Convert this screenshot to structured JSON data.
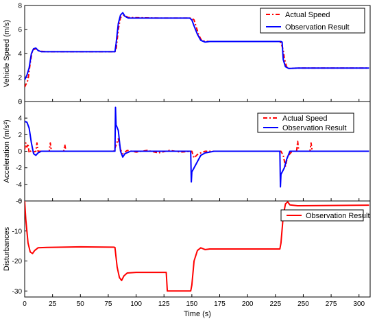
{
  "chart_data": {
    "type": "line",
    "xlabel": "Time (s)",
    "xlim": [
      0,
      310
    ],
    "xticks": [
      0,
      25,
      50,
      75,
      100,
      125,
      150,
      175,
      200,
      225,
      250,
      275,
      300
    ],
    "panels": [
      {
        "ylabel": "Vehicle Speed (m/s)",
        "ylim": [
          0,
          8
        ],
        "yticks": [
          0,
          2,
          4,
          6,
          8
        ],
        "legend_position": "top-right",
        "series": [
          {
            "name": "Actual Speed",
            "color": "#ff0000",
            "style": "dashdot",
            "points": [
              [
                0,
                1.2
              ],
              [
                3,
                1.8
              ],
              [
                5,
                3.2
              ],
              [
                7,
                4.3
              ],
              [
                10,
                4.4
              ],
              [
                13,
                4.2
              ],
              [
                20,
                4.15
              ],
              [
                50,
                4.15
              ],
              [
                81,
                4.15
              ],
              [
                82,
                4.3
              ],
              [
                84,
                6.0
              ],
              [
                86,
                7.0
              ],
              [
                89,
                7.2
              ],
              [
                93,
                7.0
              ],
              [
                120,
                6.95
              ],
              [
                150,
                6.95
              ],
              [
                152,
                6.8
              ],
              [
                156,
                5.6
              ],
              [
                158,
                5.2
              ],
              [
                160,
                5.05
              ],
              [
                165,
                5.0
              ],
              [
                200,
                5.0
              ],
              [
                228,
                5.0
              ],
              [
                230,
                4.9
              ],
              [
                232,
                4.3
              ],
              [
                233,
                3.6
              ],
              [
                235,
                2.9
              ],
              [
                237,
                2.75
              ],
              [
                245,
                2.78
              ],
              [
                309,
                2.78
              ]
            ]
          },
          {
            "name": "Observation Result",
            "color": "#0000ff",
            "style": "solid",
            "points": [
              [
                0,
                1.8
              ],
              [
                2,
                2.2
              ],
              [
                4,
                2.8
              ],
              [
                6,
                4.0
              ],
              [
                8,
                4.4
              ],
              [
                10,
                4.45
              ],
              [
                12,
                4.25
              ],
              [
                15,
                4.15
              ],
              [
                50,
                4.15
              ],
              [
                81,
                4.15
              ],
              [
                82,
                4.8
              ],
              [
                84,
                6.5
              ],
              [
                86,
                7.2
              ],
              [
                88,
                7.4
              ],
              [
                90,
                7.1
              ],
              [
                93,
                6.95
              ],
              [
                120,
                6.95
              ],
              [
                148,
                6.95
              ],
              [
                150,
                6.8
              ],
              [
                152,
                6.3
              ],
              [
                155,
                5.6
              ],
              [
                158,
                5.1
              ],
              [
                162,
                4.95
              ],
              [
                166,
                5.0
              ],
              [
                200,
                5.0
              ],
              [
                230,
                5.0
              ],
              [
                231,
                4.95
              ],
              [
                232,
                3.5
              ],
              [
                234,
                2.9
              ],
              [
                237,
                2.75
              ],
              [
                245,
                2.78
              ],
              [
                309,
                2.78
              ]
            ]
          }
        ]
      },
      {
        "ylabel": "Acceleration (m/s²)",
        "ylim": [
          -6,
          6
        ],
        "yticks": [
          -6,
          -4,
          -2,
          0,
          2,
          4,
          6
        ],
        "legend_position": "top-right",
        "series": [
          {
            "name": "Actual Speed",
            "color": "#ff0000",
            "style": "dashdot",
            "points": [
              [
                0,
                0.2
              ],
              [
                1,
                1.0
              ],
              [
                2,
                0.5
              ],
              [
                3,
                0.9
              ],
              [
                4,
                -0.2
              ],
              [
                6,
                0.1
              ],
              [
                8,
                -0.1
              ],
              [
                10,
                0.0
              ],
              [
                11,
                1.0
              ],
              [
                12,
                0.0
              ],
              [
                22,
                0.0
              ],
              [
                23,
                1.0
              ],
              [
                24,
                0.0
              ],
              [
                35,
                0.0
              ],
              [
                36,
                0.8
              ],
              [
                37,
                0.0
              ],
              [
                80,
                0.0
              ],
              [
                84,
                1.5
              ],
              [
                86,
                0.2
              ],
              [
                88,
                -0.3
              ],
              [
                92,
                0.1
              ],
              [
                100,
                -0.1
              ],
              [
                110,
                0.1
              ],
              [
                120,
                -0.2
              ],
              [
                130,
                0.1
              ],
              [
                140,
                -0.1
              ],
              [
                150,
                0.0
              ],
              [
                152,
                -0.8
              ],
              [
                155,
                -0.4
              ],
              [
                158,
                -0.2
              ],
              [
                162,
                0.0
              ],
              [
                200,
                0.0
              ],
              [
                230,
                0.0
              ],
              [
                232,
                -0.5
              ],
              [
                234,
                -1.8
              ],
              [
                236,
                -0.6
              ],
              [
                240,
                0.0
              ],
              [
                244,
                0.0
              ],
              [
                245,
                1.2
              ],
              [
                246,
                0.0
              ],
              [
                256,
                0.0
              ],
              [
                257,
                1.0
              ],
              [
                258,
                0.0
              ],
              [
                309,
                0.0
              ]
            ]
          },
          {
            "name": "Observation Result",
            "color": "#0000ff",
            "style": "solid",
            "points": [
              [
                0,
                3.6
              ],
              [
                2,
                3.5
              ],
              [
                4,
                2.8
              ],
              [
                6,
                1.0
              ],
              [
                8,
                -0.3
              ],
              [
                10,
                -0.5
              ],
              [
                12,
                -0.2
              ],
              [
                15,
                0.0
              ],
              [
                81,
                0.0
              ],
              [
                81.5,
                5.3
              ],
              [
                82,
                3.2
              ],
              [
                84,
                2.5
              ],
              [
                86,
                0.0
              ],
              [
                88,
                -0.7
              ],
              [
                90,
                -0.3
              ],
              [
                95,
                0.0
              ],
              [
                149,
                0.0
              ],
              [
                149.5,
                -3.7
              ],
              [
                150,
                -2.5
              ],
              [
                154,
                -1.5
              ],
              [
                158,
                -0.5
              ],
              [
                162,
                -0.2
              ],
              [
                170,
                0.0
              ],
              [
                229,
                0.0
              ],
              [
                229.5,
                -4.3
              ],
              [
                230,
                -2.8
              ],
              [
                233,
                -2.0
              ],
              [
                235,
                -1.0
              ],
              [
                238,
                0.0
              ],
              [
                309,
                0.0
              ]
            ]
          }
        ]
      },
      {
        "ylabel": "Disturbances",
        "ylim": [
          -32,
          0
        ],
        "yticks": [
          -30,
          -20,
          -10,
          0
        ],
        "legend_position": "top-right",
        "series": [
          {
            "name": "Observation Result",
            "color": "#ff0000",
            "style": "solid",
            "points": [
              [
                0,
                0.0
              ],
              [
                1,
                -6.0
              ],
              [
                3,
                -14.0
              ],
              [
                5,
                -17.0
              ],
              [
                7,
                -17.5
              ],
              [
                9,
                -16.5
              ],
              [
                12,
                -15.6
              ],
              [
                20,
                -15.5
              ],
              [
                50,
                -15.3
              ],
              [
                80,
                -15.4
              ],
              [
                81,
                -15.5
              ],
              [
                83,
                -22.0
              ],
              [
                85,
                -25.5
              ],
              [
                87,
                -26.5
              ],
              [
                89,
                -25.0
              ],
              [
                92,
                -24.0
              ],
              [
                100,
                -23.8
              ],
              [
                127,
                -23.8
              ],
              [
                128,
                -30.0
              ],
              [
                140,
                -30.0
              ],
              [
                149,
                -30.0
              ],
              [
                150,
                -28.0
              ],
              [
                152,
                -20.0
              ],
              [
                155,
                -16.5
              ],
              [
                158,
                -15.6
              ],
              [
                162,
                -16.2
              ],
              [
                166,
                -16.0
              ],
              [
                200,
                -16.0
              ],
              [
                229,
                -16.0
              ],
              [
                230,
                -14.0
              ],
              [
                232,
                -5.0
              ],
              [
                234,
                -1.0
              ],
              [
                236,
                -0.3
              ],
              [
                238,
                -1.3
              ],
              [
                245,
                -1.6
              ],
              [
                309,
                -1.4
              ]
            ]
          }
        ]
      }
    ]
  }
}
